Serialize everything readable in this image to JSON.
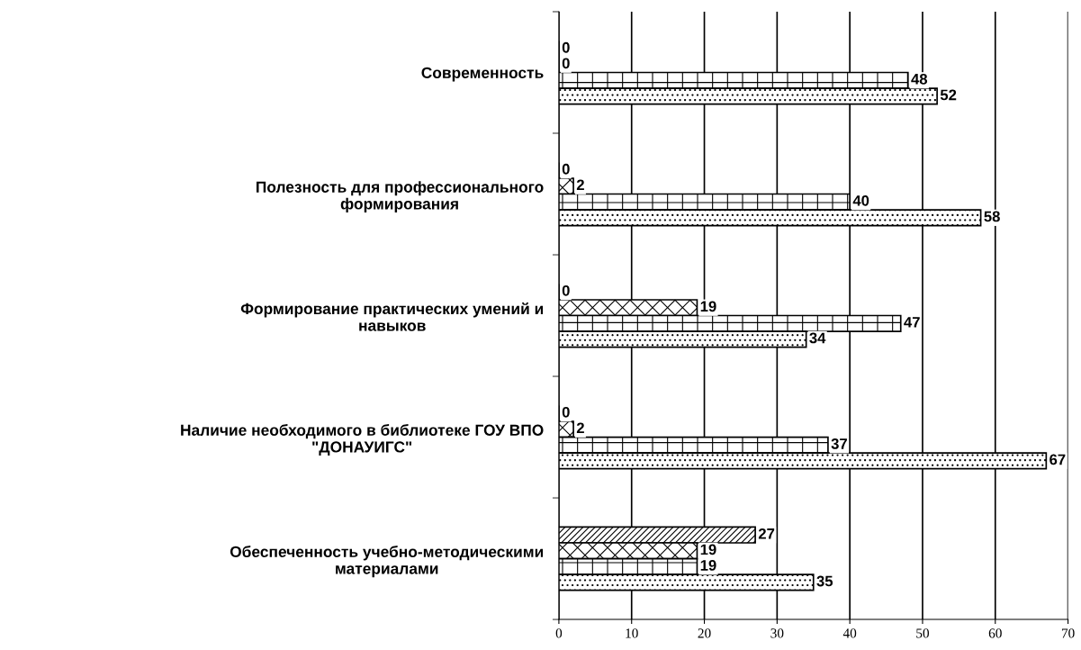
{
  "chart_data": {
    "type": "bar",
    "orientation": "horizontal",
    "categories": [
      "Современность",
      "Полезность для профессионального\nформирования",
      "Формирование практических умений и\nнавыков",
      "Наличие необходимого в библиотеке ГОУ ВПО\n\"ДОНАУИГС\"",
      "Обеспеченность учебно-методическими\nматериалами"
    ],
    "series": [
      {
        "color": "#000000",
        "values": [
          0,
          0,
          0,
          0,
          27
        ]
      },
      {
        "color": "#000000",
        "values": [
          0,
          2,
          19,
          2,
          19
        ]
      },
      {
        "color": "#000000",
        "values": [
          48,
          40,
          47,
          37,
          19
        ]
      },
      {
        "color": "#000000",
        "values": [
          52,
          58,
          34,
          67,
          35
        ]
      }
    ],
    "xlim": [
      0,
      70
    ],
    "xticks": [
      0,
      10,
      20,
      30,
      40,
      50,
      60,
      70
    ],
    "grid": "x",
    "legend": false,
    "data_labels": true
  }
}
